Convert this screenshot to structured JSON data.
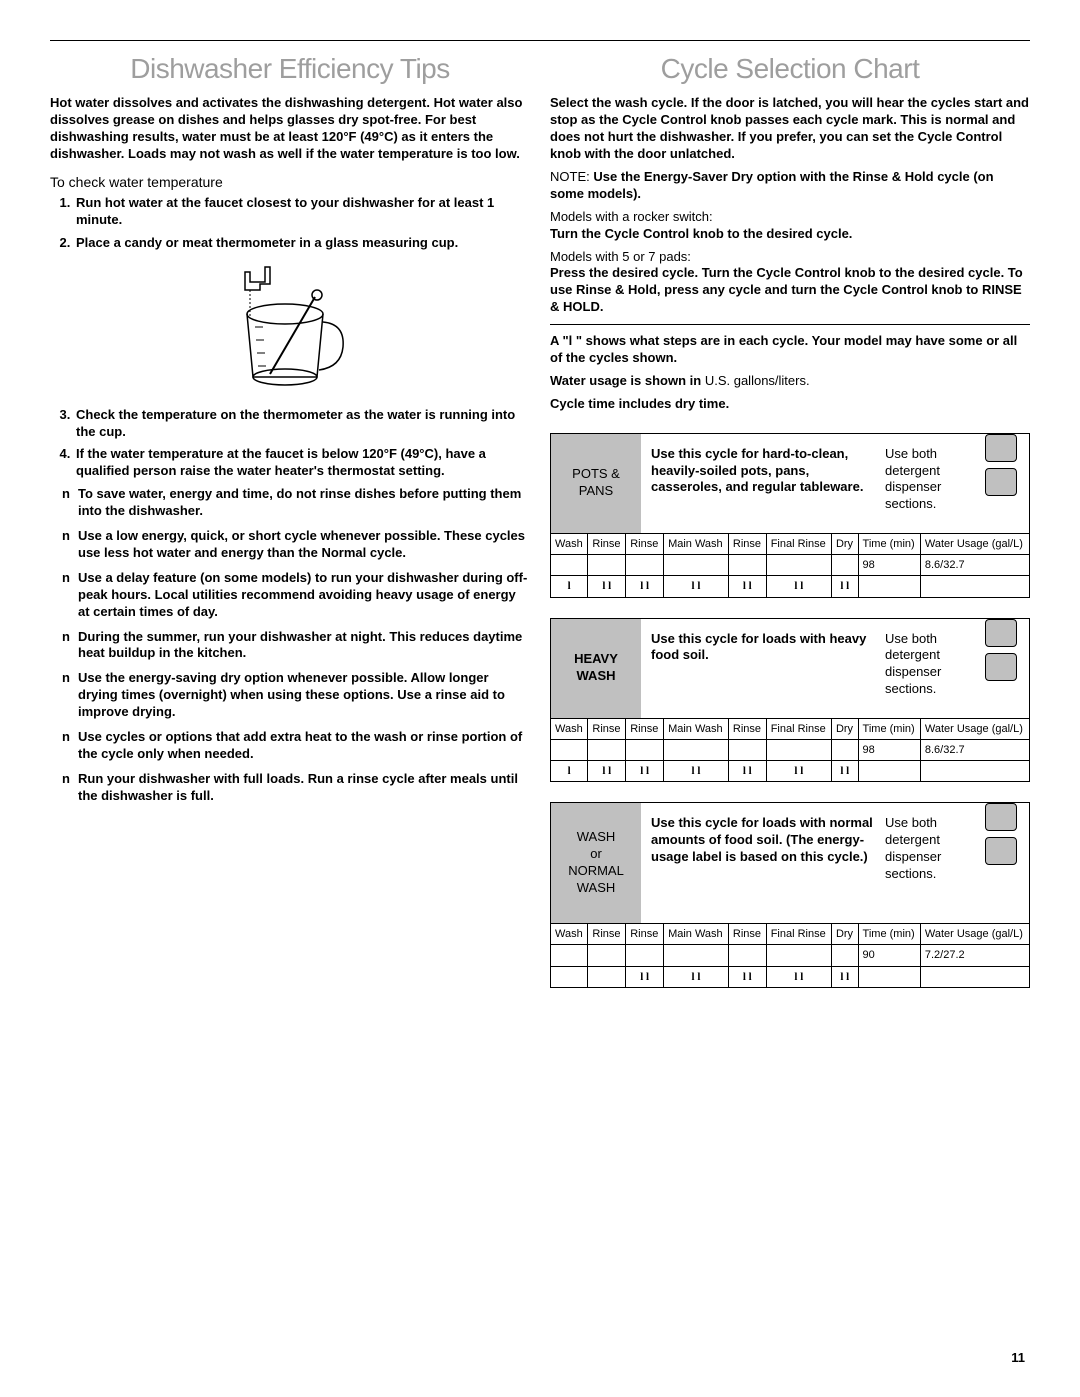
{
  "left": {
    "title": "Dishwasher Efficiency Tips",
    "intro": "Hot water dissolves and activates the dishwashing detergent. Hot water also dissolves grease on dishes and helps glasses dry spot-free. For best dishwashing results, water must be at least 120°F (49°C) as it enters the dishwasher. Loads may not wash as well if the water temperature is too low.",
    "subhead": "To check water temperature",
    "steps": [
      "Run hot water at the faucet closest to your dishwasher for at least 1 minute.",
      "Place a candy or meat thermometer in a glass measuring cup.",
      "Check the temperature on the thermometer as the water is running into the cup.",
      "If the water temperature at the faucet is below 120°F (49°C), have a qualified person raise the water heater's thermostat setting."
    ],
    "bullets": [
      "To save water, energy and time, do not rinse dishes before putting them into the dishwasher.",
      "Use a low energy, quick, or short cycle whenever possible. These cycles use less hot water and energy than the Normal cycle.",
      "Use a delay feature (on some models) to run your dishwasher during off-peak hours. Local utilities recommend avoiding heavy usage of energy at certain times of day.",
      "During the summer, run your dishwasher at night. This reduces daytime heat buildup in the kitchen.",
      "Use the energy-saving dry option whenever possible. Allow longer drying times (overnight) when using these options. Use a rinse aid to improve drying.",
      "Use cycles or options that add extra heat to the wash or rinse portion of the cycle only when needed.",
      "Run your dishwasher with full loads. Run a rinse cycle after meals until the dishwasher is full."
    ]
  },
  "right": {
    "title": "Cycle Selection Chart",
    "intro": "Select the wash cycle. If the door is latched, you will hear the cycles start and stop as the Cycle Control knob passes each cycle mark. This is normal and does not hurt the dishwasher. If you prefer, you can set the Cycle Control knob with the door unlatched.",
    "note_label": "NOTE:",
    "note": "Use the Energy-Saver Dry option with the Rinse & Hold cycle (on some models).",
    "rocker_label": "Models with a rocker switch:",
    "rocker": "Turn the Cycle Control knob to the desired cycle.",
    "pads_label": "Models with 5 or 7 pads:",
    "pads": "Press the desired cycle. Turn the Cycle Control knob to the desired cycle. To use Rinse & Hold, press any cycle and turn the Cycle Control knob to RINSE & HOLD.",
    "legend1": "A \"l \" shows what steps are in each cycle. Your model may have some or all of the cycles shown.",
    "legend2_a": "Water usage is shown in ",
    "legend2_b": "U.S. gallons/liters.",
    "legend3": "Cycle time includes dry time.",
    "table_headers": [
      "Wash",
      "Rinse",
      "Rinse",
      "Main Wash",
      "Rinse",
      "Final Rinse",
      "Dry",
      "Time (min)",
      "Water Usage (gal/L)"
    ],
    "cycles": [
      {
        "tag_lines": [
          "POTS &",
          "PANS"
        ],
        "tag_bold": false,
        "use": "Use this cycle for hard-to-clean, heavily-soiled pots, pans, casseroles, and regular tableware.",
        "dispenser": "Use both detergent dispenser sections.",
        "marks": [
          "l",
          "l l",
          "l l",
          "l l",
          "l l",
          "l l",
          "l l",
          "",
          ""
        ],
        "time": "98",
        "water": "8.6/32.7"
      },
      {
        "tag_lines": [
          "HEAVY",
          "WASH"
        ],
        "tag_bold": true,
        "use": "Use this cycle for loads with heavy food soil.",
        "dispenser": "Use both detergent dispenser sections.",
        "marks": [
          "l",
          "l l",
          "l l",
          "l l",
          "l l",
          "l l",
          "l l",
          "",
          ""
        ],
        "time": "98",
        "water": "8.6/32.7"
      },
      {
        "tag_lines": [
          "WASH",
          "or",
          "NORMAL",
          "WASH"
        ],
        "tag_bold": false,
        "use": "Use this cycle for loads with normal amounts of food soil. (The energy-usage label is based on this cycle.)",
        "dispenser": "Use both detergent dispenser sections.",
        "marks": [
          "",
          "",
          "l l",
          "l l",
          "l l",
          "l l",
          "l l",
          "",
          ""
        ],
        "time": "90",
        "water": "7.2/27.2"
      }
    ]
  },
  "page_number": "11"
}
